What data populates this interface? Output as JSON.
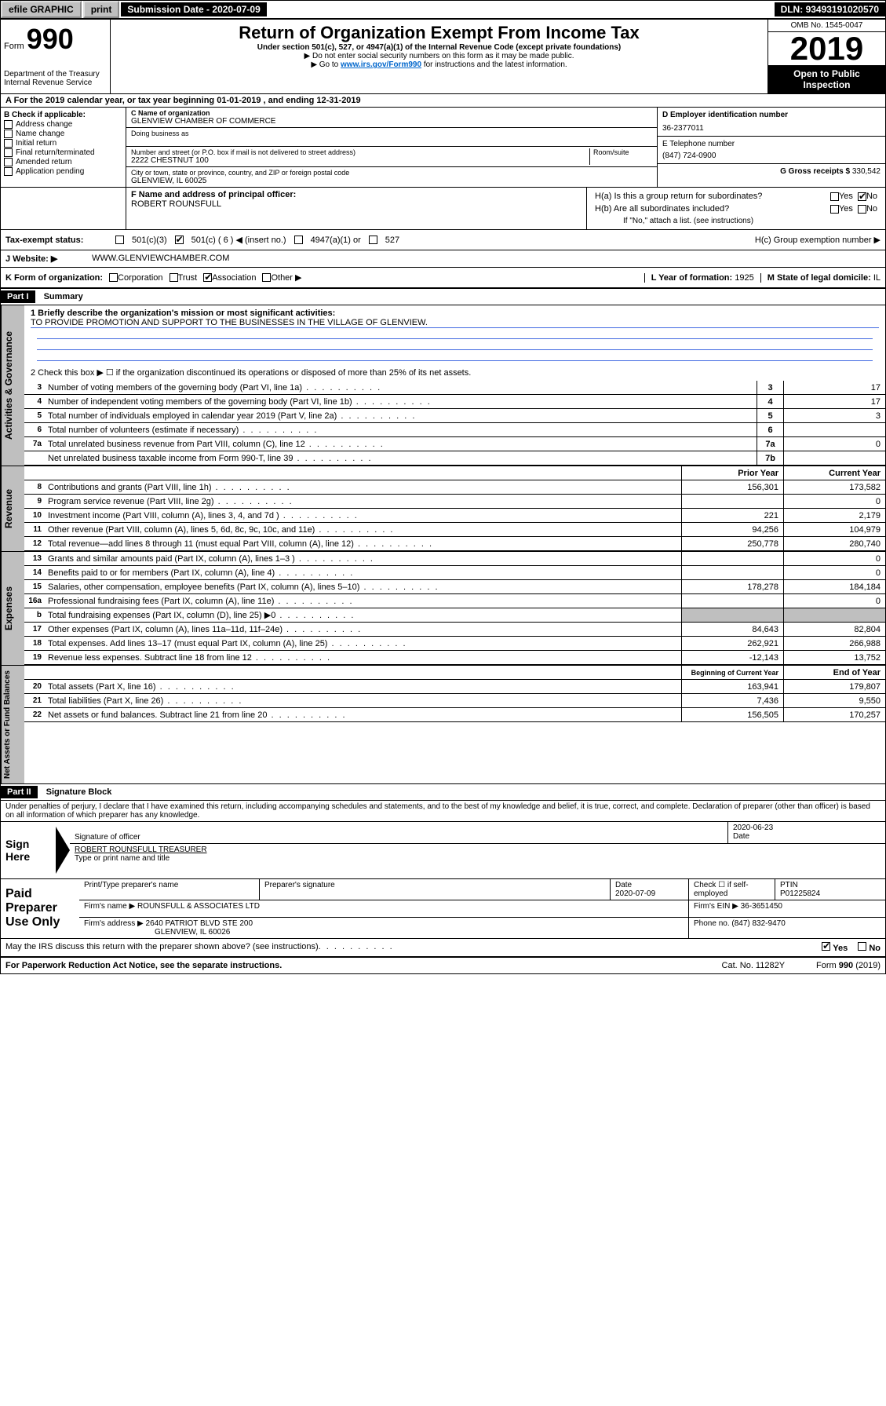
{
  "topbar": {
    "efile": "efile GRAPHIC",
    "print": "print",
    "submission_label": "Submission Date - ",
    "submission_date": "2020-07-09",
    "dln_label": "DLN: ",
    "dln": "93493191020570"
  },
  "header": {
    "form_label": "Form",
    "form_num": "990",
    "title": "Return of Organization Exempt From Income Tax",
    "subtitle": "Under section 501(c), 527, or 4947(a)(1) of the Internal Revenue Code (except private foundations)",
    "note1": "▶ Do not enter social security numbers on this form as it may be made public.",
    "note2_pre": "▶ Go to ",
    "note2_link": "www.irs.gov/Form990",
    "note2_post": " for instructions and the latest information.",
    "omb": "OMB No. 1545-0047",
    "year": "2019",
    "open_public": "Open to Public Inspection",
    "dept": "Department of the Treasury Internal Revenue Service"
  },
  "period": {
    "label": "A For the 2019 calendar year, or tax year beginning ",
    "start": "01-01-2019",
    "mid": " , and ending ",
    "end": "12-31-2019"
  },
  "section_b": {
    "label": "B Check if applicable:",
    "items": [
      "Address change",
      "Name change",
      "Initial return",
      "Final return/terminated",
      "Amended return",
      "Application pending"
    ]
  },
  "section_c": {
    "name_label": "C Name of organization",
    "name": "GLENVIEW CHAMBER OF COMMERCE",
    "dba_label": "Doing business as",
    "addr_label": "Number and street (or P.O. box if mail is not delivered to street address)",
    "room_label": "Room/suite",
    "addr": "2222 CHESTNUT 100",
    "city_label": "City or town, state or province, country, and ZIP or foreign postal code",
    "city": "GLENVIEW, IL  60025"
  },
  "section_d": {
    "label": "D Employer identification number",
    "value": "36-2377011"
  },
  "section_e": {
    "label": "E Telephone number",
    "value": "(847) 724-0900"
  },
  "section_g": {
    "label": "G Gross receipts $ ",
    "value": "330,542"
  },
  "section_f": {
    "label": "F Name and address of principal officer:",
    "name": "ROBERT ROUNSFULL"
  },
  "section_h": {
    "ha": "H(a)  Is this a group return for subordinates?",
    "hb": "H(b)  Are all subordinates included?",
    "hb_note": "If \"No,\" attach a list. (see instructions)",
    "hc": "H(c)  Group exemption number ▶",
    "yes": "Yes",
    "no": "No"
  },
  "section_i": {
    "label": "Tax-exempt status:",
    "opts": [
      "501(c)(3)",
      "501(c) ( 6 ) ◀ (insert no.)",
      "4947(a)(1) or",
      "527"
    ]
  },
  "section_j": {
    "label": "J   Website: ▶",
    "value": "WWW.GLENVIEWCHAMBER.COM"
  },
  "section_k": {
    "label": "K Form of organization:",
    "opts": [
      "Corporation",
      "Trust",
      "Association",
      "Other ▶"
    ]
  },
  "section_l": {
    "label": "L Year of formation: ",
    "value": "1925"
  },
  "section_m": {
    "label": "M State of legal domicile: ",
    "value": "IL"
  },
  "part1": {
    "header": "Part I",
    "title": "Summary",
    "line1_label": "1  Briefly describe the organization's mission or most significant activities:",
    "mission": "TO PROVIDE PROMOTION AND SUPPORT TO THE BUSINESSES IN THE VILLAGE OF GLENVIEW.",
    "line2": "2   Check this box ▶ ☐  if the organization discontinued its operations or disposed of more than 25% of its net assets.",
    "sidebar_gov": "Activities & Governance",
    "sidebar_rev": "Revenue",
    "sidebar_exp": "Expenses",
    "sidebar_net": "Net Assets or Fund Balances",
    "prior_year": "Prior Year",
    "current_year": "Current Year",
    "beg_year": "Beginning of Current Year",
    "end_year": "End of Year",
    "gov_lines": [
      {
        "n": "3",
        "d": "Number of voting members of the governing body (Part VI, line 1a)",
        "box": "3",
        "v": "17"
      },
      {
        "n": "4",
        "d": "Number of independent voting members of the governing body (Part VI, line 1b)",
        "box": "4",
        "v": "17"
      },
      {
        "n": "5",
        "d": "Total number of individuals employed in calendar year 2019 (Part V, line 2a)",
        "box": "5",
        "v": "3"
      },
      {
        "n": "6",
        "d": "Total number of volunteers (estimate if necessary)",
        "box": "6",
        "v": ""
      },
      {
        "n": "7a",
        "d": "Total unrelated business revenue from Part VIII, column (C), line 12",
        "box": "7a",
        "v": "0"
      },
      {
        "n": "",
        "d": "Net unrelated business taxable income from Form 990-T, line 39",
        "box": "7b",
        "v": ""
      }
    ],
    "rev_lines": [
      {
        "n": "8",
        "d": "Contributions and grants (Part VIII, line 1h)",
        "p": "156,301",
        "c": "173,582"
      },
      {
        "n": "9",
        "d": "Program service revenue (Part VIII, line 2g)",
        "p": "",
        "c": "0"
      },
      {
        "n": "10",
        "d": "Investment income (Part VIII, column (A), lines 3, 4, and 7d )",
        "p": "221",
        "c": "2,179"
      },
      {
        "n": "11",
        "d": "Other revenue (Part VIII, column (A), lines 5, 6d, 8c, 9c, 10c, and 11e)",
        "p": "94,256",
        "c": "104,979"
      },
      {
        "n": "12",
        "d": "Total revenue—add lines 8 through 11 (must equal Part VIII, column (A), line 12)",
        "p": "250,778",
        "c": "280,740"
      }
    ],
    "exp_lines": [
      {
        "n": "13",
        "d": "Grants and similar amounts paid (Part IX, column (A), lines 1–3 )",
        "p": "",
        "c": "0"
      },
      {
        "n": "14",
        "d": "Benefits paid to or for members (Part IX, column (A), line 4)",
        "p": "",
        "c": "0"
      },
      {
        "n": "15",
        "d": "Salaries, other compensation, employee benefits (Part IX, column (A), lines 5–10)",
        "p": "178,278",
        "c": "184,184"
      },
      {
        "n": "16a",
        "d": "Professional fundraising fees (Part IX, column (A), line 11e)",
        "p": "",
        "c": "0"
      },
      {
        "n": "b",
        "d": "Total fundraising expenses (Part IX, column (D), line 25) ▶0",
        "p": "gray",
        "c": "gray"
      },
      {
        "n": "17",
        "d": "Other expenses (Part IX, column (A), lines 11a–11d, 11f–24e)",
        "p": "84,643",
        "c": "82,804"
      },
      {
        "n": "18",
        "d": "Total expenses. Add lines 13–17 (must equal Part IX, column (A), line 25)",
        "p": "262,921",
        "c": "266,988"
      },
      {
        "n": "19",
        "d": "Revenue less expenses. Subtract line 18 from line 12",
        "p": "-12,143",
        "c": "13,752"
      }
    ],
    "net_lines": [
      {
        "n": "20",
        "d": "Total assets (Part X, line 16)",
        "p": "163,941",
        "c": "179,807"
      },
      {
        "n": "21",
        "d": "Total liabilities (Part X, line 26)",
        "p": "7,436",
        "c": "9,550"
      },
      {
        "n": "22",
        "d": "Net assets or fund balances. Subtract line 21 from line 20",
        "p": "156,505",
        "c": "170,257"
      }
    ]
  },
  "part2": {
    "header": "Part II",
    "title": "Signature Block",
    "declaration": "Under penalties of perjury, I declare that I have examined this return, including accompanying schedules and statements, and to the best of my knowledge and belief, it is true, correct, and complete. Declaration of preparer (other than officer) is based on all information of which preparer has any knowledge."
  },
  "sign": {
    "label": "Sign Here",
    "sig_officer": "Signature of officer",
    "date": "2020-06-23",
    "date_label": "Date",
    "name": "ROBERT ROUNSFULL TREASURER",
    "name_label": "Type or print name and title"
  },
  "paid": {
    "label": "Paid Preparer Use Only",
    "col_name": "Print/Type preparer's name",
    "col_sig": "Preparer's signature",
    "col_date": "Date",
    "date": "2020-07-09",
    "check_label": "Check ☐ if self-employed",
    "ptin_label": "PTIN",
    "ptin": "P01225824",
    "firm_name_label": "Firm's name     ▶",
    "firm_name": "ROUNSFULL & ASSOCIATES LTD",
    "firm_ein_label": "Firm's EIN ▶",
    "firm_ein": "36-3651450",
    "firm_addr_label": "Firm's address ▶",
    "firm_addr": "2640 PATRIOT BLVD STE 200",
    "firm_city": "GLENVIEW, IL  60026",
    "phone_label": "Phone no. ",
    "phone": "(847) 832-9470"
  },
  "footer": {
    "discuss": "May the IRS discuss this return with the preparer shown above? (see instructions)",
    "yes": "Yes",
    "no": "No",
    "paperwork": "For Paperwork Reduction Act Notice, see the separate instructions.",
    "cat": "Cat. No. 11282Y",
    "form": "Form 990 (2019)"
  }
}
